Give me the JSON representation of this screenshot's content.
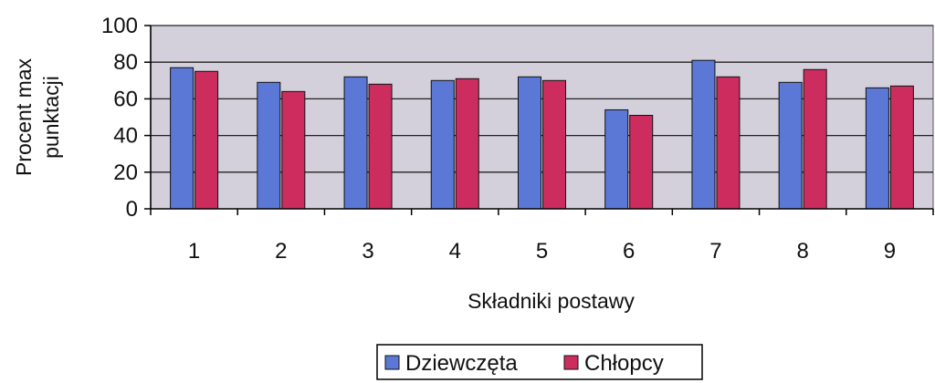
{
  "chart_data": {
    "type": "bar",
    "title": "",
    "xlabel": "Składniki postawy",
    "ylabel": [
      "Procent max",
      "punktacji"
    ],
    "categories": [
      "1",
      "2",
      "3",
      "4",
      "5",
      "6",
      "7",
      "8",
      "9"
    ],
    "series": [
      {
        "name": "Dziewczęta",
        "color": "#5b78d6",
        "values": [
          77,
          69,
          72,
          70,
          72,
          54,
          81,
          69,
          66
        ]
      },
      {
        "name": "Chłopcy",
        "color": "#cc2d5e",
        "values": [
          75,
          64,
          68,
          71,
          70,
          51,
          72,
          76,
          67
        ]
      }
    ],
    "ylim": [
      0,
      100
    ],
    "yticks": [
      0,
      20,
      40,
      60,
      80,
      100
    ],
    "grid": true,
    "plot_background": "#d3d0dc",
    "legend_position": "bottom-center"
  }
}
